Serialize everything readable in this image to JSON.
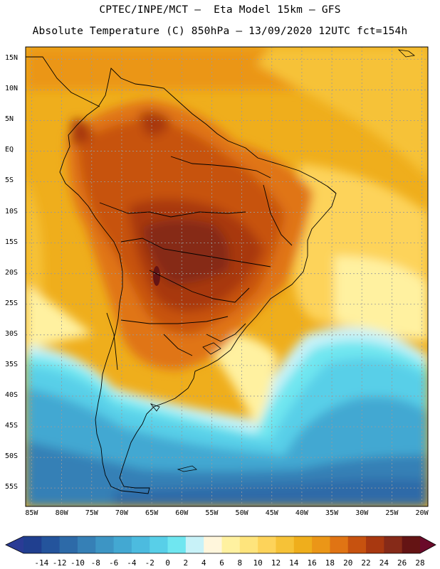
{
  "header": {
    "line1": "CPTEC/INPE/MCT —  Eta Model 15km — GFS",
    "line2": "Absolute Temperature (C) 850hPa — 13/09/2020 12UTC fct=154h"
  },
  "axes": {
    "lat_labels": [
      "15N",
      "10N",
      "5N",
      "EQ",
      "5S",
      "10S",
      "15S",
      "20S",
      "25S",
      "30S",
      "35S",
      "40S",
      "45S",
      "50S",
      "55S"
    ],
    "lat_values": [
      15,
      10,
      5,
      0,
      -5,
      -10,
      -15,
      -20,
      -25,
      -30,
      -35,
      -40,
      -45,
      -50,
      -55
    ],
    "lon_labels": [
      "85W",
      "80W",
      "75W",
      "70W",
      "65W",
      "60W",
      "55W",
      "50W",
      "45W",
      "40W",
      "35W",
      "30W",
      "25W",
      "20W"
    ],
    "lon_values": [
      -85,
      -80,
      -75,
      -70,
      -65,
      -60,
      -55,
      -50,
      -45,
      -40,
      -35,
      -30,
      -25,
      -20
    ],
    "lon_range": [
      -86,
      -19
    ],
    "lat_range": [
      -58,
      17
    ]
  },
  "colorbar": {
    "labels": [
      "-14",
      "-12",
      "-10",
      "-8",
      "-6",
      "-4",
      "-2",
      "0",
      "2",
      "4",
      "6",
      "8",
      "10",
      "12",
      "14",
      "16",
      "18",
      "20",
      "22",
      "24",
      "26",
      "28"
    ],
    "colors": [
      "#203f8f",
      "#24549c",
      "#2d6aa8",
      "#3680b6",
      "#3d95c4",
      "#43a8d2",
      "#4cbbdf",
      "#58cfe8",
      "#6fe6f0",
      "#c8f2f8",
      "#fff6dc",
      "#fff1a0",
      "#fee47c",
      "#fdd35a",
      "#f6c237",
      "#efae1c",
      "#eb9617",
      "#e07414",
      "#c7520f",
      "#a83810",
      "#862a18",
      "#641414"
    ],
    "under_color": "#2a3b95",
    "over_color": "#6a0a2a"
  }
}
